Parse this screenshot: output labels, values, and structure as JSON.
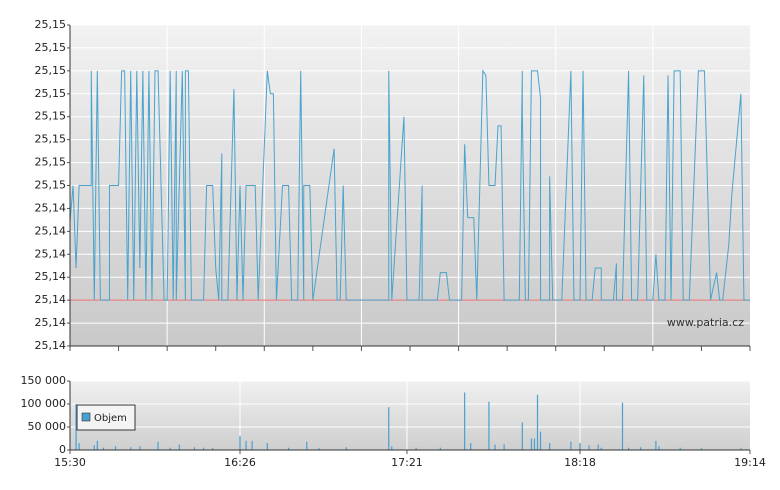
{
  "chart_data": [
    {
      "type": "line",
      "x": [
        "15:30",
        "15:31",
        "15:32",
        "15:33",
        "15:37",
        "15:37",
        "15:38",
        "15:39",
        "15:40",
        "15:43",
        "15:43",
        "15:46",
        "15:47",
        "15:48",
        "15:49",
        "15:50",
        "15:51",
        "15:52",
        "15:53",
        "15:54",
        "15:55",
        "15:56",
        "15:57",
        "15:58",
        "15:59",
        "16:01",
        "16:02",
        "16:03",
        "16:04",
        "16:05",
        "16:05",
        "16:07",
        "16:08",
        "16:08",
        "16:09",
        "16:10",
        "16:14",
        "16:15",
        "16:17",
        "16:18",
        "16:19",
        "16:20",
        "16:20",
        "16:22",
        "16:24",
        "16:25",
        "16:26",
        "16:27",
        "16:28",
        "16:31",
        "16:32",
        "16:35",
        "16:36",
        "16:37",
        "16:38",
        "16:40",
        "16:42",
        "16:43",
        "16:45",
        "16:46",
        "16:47",
        "16:47",
        "16:49",
        "16:50",
        "16:57",
        "16:58",
        "16:59",
        "17:00",
        "17:01",
        "17:15",
        "17:15",
        "17:16",
        "17:20",
        "17:21",
        "17:25",
        "17:26",
        "17:26",
        "17:31",
        "17:32",
        "17:34",
        "17:35",
        "17:39",
        "17:40",
        "17:41",
        "17:43",
        "17:44",
        "17:46",
        "17:47",
        "17:48",
        "17:50",
        "17:51",
        "17:52",
        "17:53",
        "17:58",
        "17:59",
        "17:59",
        "18:00",
        "18:01",
        "18:02",
        "18:04",
        "18:05",
        "18:05",
        "18:08",
        "18:08",
        "18:09",
        "18:12",
        "18:15",
        "18:16",
        "18:18",
        "18:19",
        "18:19",
        "18:20",
        "18:22",
        "18:23",
        "18:25",
        "18:25",
        "18:27",
        "18:29",
        "18:30",
        "18:30",
        "18:32",
        "18:33",
        "18:34",
        "18:35",
        "18:37",
        "18:39",
        "18:40",
        "18:42",
        "18:43",
        "18:44",
        "18:46",
        "18:47",
        "18:48",
        "18:49",
        "18:51",
        "18:52",
        "18:54",
        "18:57",
        "18:59",
        "19:01",
        "19:03",
        "19:04",
        "19:05",
        "19:07",
        "19:08",
        "19:11",
        "19:12",
        "19:14"
      ],
      "values": [
        25.1442,
        25.145,
        25.1432,
        25.145,
        25.145,
        25.1475,
        25.1425,
        25.1475,
        25.1425,
        25.1425,
        25.145,
        25.145,
        25.1475,
        25.1475,
        25.1425,
        25.1475,
        25.1425,
        25.1475,
        25.1432,
        25.1475,
        25.1425,
        25.1475,
        25.1425,
        25.1475,
        25.1475,
        25.1425,
        25.1425,
        25.1475,
        25.1425,
        25.1475,
        25.1425,
        25.1475,
        25.1425,
        25.1475,
        25.1475,
        25.1425,
        25.1425,
        25.145,
        25.145,
        25.1432,
        25.1425,
        25.1457,
        25.1425,
        25.1425,
        25.1471,
        25.1425,
        25.145,
        25.1425,
        25.145,
        25.145,
        25.1425,
        25.1475,
        25.147,
        25.147,
        25.1425,
        25.145,
        25.145,
        25.1425,
        25.1425,
        25.1475,
        25.1425,
        25.145,
        25.145,
        25.1425,
        25.1458,
        25.1425,
        25.1425,
        25.145,
        25.1425,
        25.1425,
        25.1475,
        25.1425,
        25.1465,
        25.1425,
        25.1425,
        25.145,
        25.1425,
        25.1425,
        25.1431,
        25.1431,
        25.1425,
        25.1425,
        25.1459,
        25.1443,
        25.1443,
        25.1425,
        25.1475,
        25.1474,
        25.145,
        25.145,
        25.1463,
        25.1463,
        25.1425,
        25.1425,
        25.1475,
        25.1466,
        25.1425,
        25.1425,
        25.1475,
        25.1475,
        25.1469,
        25.1425,
        25.1425,
        25.1452,
        25.1425,
        25.1425,
        25.1475,
        25.1425,
        25.1425,
        25.1475,
        25.1475,
        25.1425,
        25.1425,
        25.1432,
        25.1432,
        25.1425,
        25.1425,
        25.1425,
        25.1433,
        25.1425,
        25.1425,
        25.145,
        25.1475,
        25.1425,
        25.1425,
        25.1474,
        25.1425,
        25.1425,
        25.1435,
        25.1425,
        25.1425,
        25.1474,
        25.1425,
        25.1475,
        25.1475,
        25.1425,
        25.1425,
        25.1475,
        25.1475,
        25.1425,
        25.1431,
        25.1425,
        25.1425,
        25.1437,
        25.1448,
        25.147,
        25.1425,
        25.1425
      ],
      "color": "#4aa3cc",
      "reference_line": 25.1425,
      "reference_color": "#e86a6a",
      "xlim": [
        "15:30",
        "19:14"
      ],
      "ylim": [
        25.1415,
        25.1485
      ],
      "yticks": [
        {
          "value": 25.1415,
          "label": "25,14"
        },
        {
          "value": 25.142,
          "label": "25,14"
        },
        {
          "value": 25.1425,
          "label": "25,14"
        },
        {
          "value": 25.143,
          "label": "25,14"
        },
        {
          "value": 25.1435,
          "label": "25,14"
        },
        {
          "value": 25.144,
          "label": "25,14"
        },
        {
          "value": 25.1445,
          "label": "25,14"
        },
        {
          "value": 25.145,
          "label": "25,15"
        },
        {
          "value": 25.1455,
          "label": "25,15"
        },
        {
          "value": 25.146,
          "label": "25,15"
        },
        {
          "value": 25.1465,
          "label": "25,15"
        },
        {
          "value": 25.147,
          "label": "25,15"
        },
        {
          "value": 25.1475,
          "label": "25,15"
        },
        {
          "value": 25.148,
          "label": "25,15"
        },
        {
          "value": 25.1485,
          "label": "25,15"
        }
      ],
      "grid": true,
      "watermark": "www.patria.cz"
    },
    {
      "type": "bar",
      "x": [
        "15:32",
        "15:33",
        "15:38",
        "15:39",
        "15:41",
        "15:45",
        "15:50",
        "15:53",
        "15:59",
        "16:03",
        "16:06",
        "16:11",
        "16:14",
        "16:17",
        "16:26",
        "16:28",
        "16:30",
        "16:35",
        "16:42",
        "16:48",
        "16:52",
        "17:01",
        "17:15",
        "17:16",
        "17:24",
        "17:32",
        "17:40",
        "17:42",
        "17:48",
        "17:50",
        "17:53",
        "17:59",
        "18:02",
        "18:03",
        "18:04",
        "18:05",
        "18:08",
        "18:15",
        "18:18",
        "18:21",
        "18:24",
        "18:25",
        "18:32",
        "18:34",
        "18:38",
        "18:43",
        "18:44",
        "18:51",
        "18:58",
        "19:11"
      ],
      "series": [
        {
          "name": "Objem",
          "color": "#4a9fd0",
          "values": [
            100000,
            15000,
            10000,
            20000,
            5000,
            8000,
            6000,
            8000,
            18000,
            5000,
            12000,
            6000,
            5000,
            4000,
            30000,
            20000,
            20000,
            15000,
            5000,
            18000,
            4000,
            6000,
            93000,
            8000,
            5000,
            5000,
            125000,
            15000,
            105000,
            12000,
            12000,
            60000,
            25000,
            25000,
            120000,
            40000,
            15000,
            18000,
            15000,
            10000,
            12000,
            5000,
            103000,
            5000,
            6000,
            20000,
            8000,
            5000,
            4000,
            4000
          ]
        }
      ],
      "xlim": [
        "15:30",
        "19:14"
      ],
      "xticks": [
        "15:30",
        "16:26",
        "17:21",
        "18:18",
        "19:14"
      ],
      "ylim": [
        0,
        150000
      ],
      "yticks": [
        0,
        {
          "value": 50000,
          "label": "50 000"
        },
        {
          "value": 100000,
          "label": "100 000"
        },
        {
          "value": 150000,
          "label": "150 000"
        }
      ],
      "grid": true
    }
  ]
}
